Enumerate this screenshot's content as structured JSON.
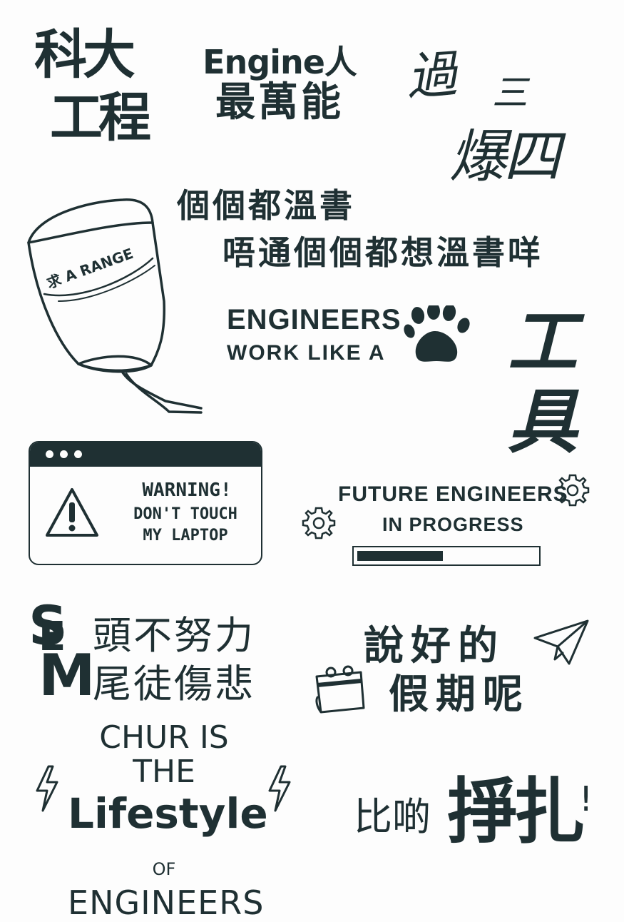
{
  "stickers": {
    "s1": {
      "line1": "科大",
      "line2": "工程"
    },
    "s2": {
      "line1": "Engine人",
      "line2": "最萬能"
    },
    "s3": {
      "line1a": "過",
      "line1b": "三",
      "line2": "爆四"
    },
    "s4": {
      "line1": "個個都溫書",
      "line2": "唔通個個都想溫書咩"
    },
    "lantern": {
      "label": "求 A RANGE"
    },
    "s6": {
      "line1": "ENGINEERS",
      "line2": "WORK LIKE A",
      "icon": "paw-icon"
    },
    "s7": {
      "line1": "工",
      "line2": "具"
    },
    "warning": {
      "line1": "WARNING!",
      "line2": "DON'T TOUCH",
      "line3": "MY LAPTOP",
      "icon": "warning-icon"
    },
    "future": {
      "line1": "FUTURE ENGINEERS",
      "line2": "IN PROGRESS",
      "progress": 0.48,
      "icon": "gear-icon"
    },
    "s9": {
      "s": "S",
      "e": "E",
      "m": "M",
      "line1": "頭不努力",
      "line2": "尾徒傷悲"
    },
    "s10": {
      "line1": "說好的",
      "line2": "假期呢",
      "icons": [
        "paper-plane-icon",
        "calendar-icon"
      ]
    },
    "s11": {
      "line1": "CHUR IS THE",
      "line2": "Lifestyle",
      "of": "OF",
      "line3": "ENGINEERS",
      "icon": "lightning-icon"
    },
    "s12": {
      "small": "比啲",
      "big": "掙扎",
      "ex": "!"
    }
  },
  "colors": {
    "ink": "#1f3033",
    "paper": "#fdfdfd"
  }
}
